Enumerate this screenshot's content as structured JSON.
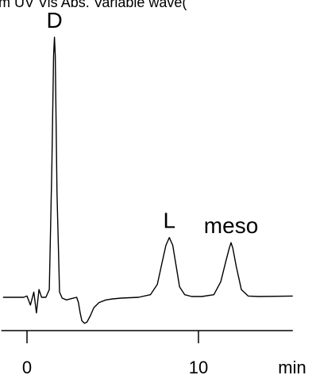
{
  "header_fragment": "m    UV Vis Abs. Variable wave(",
  "chart_data": {
    "type": "line",
    "title": "",
    "xlabel": "min",
    "ylabel": "",
    "xlim": [
      -1.5,
      15.5
    ],
    "ylim": [
      -0.12,
      1.0
    ],
    "x_ticks": [
      0,
      10
    ],
    "x_tick_labels": [
      "0",
      "10"
    ],
    "grid": false,
    "peaks": [
      {
        "label": "D",
        "time": 1.6,
        "height": 1.0
      },
      {
        "label": "L",
        "time": 8.3,
        "height": 0.23
      },
      {
        "label": "meso",
        "time": 11.9,
        "height": 0.21
      }
    ],
    "series": [
      {
        "x": [
          -1.4,
          -0.2,
          0.0,
          0.2,
          0.4,
          0.55,
          0.7,
          0.85,
          1.0,
          1.1,
          1.3,
          1.45,
          1.55,
          1.6,
          1.65,
          1.75,
          1.9,
          2.05,
          2.3,
          2.6,
          2.9,
          3.0,
          3.1,
          3.2,
          3.35,
          3.5,
          3.7,
          3.9,
          4.2,
          4.6,
          5.0,
          5.5,
          6.5,
          7.2,
          7.6,
          7.9,
          8.1,
          8.3,
          8.5,
          8.7,
          8.9,
          9.2,
          9.6,
          10.2,
          10.9,
          11.3,
          11.6,
          11.8,
          11.9,
          12.0,
          12.2,
          12.5,
          12.9,
          13.5,
          15.5
        ],
        "y": [
          0.0,
          0.0,
          0.005,
          -0.03,
          0.02,
          -0.06,
          0.03,
          0.0,
          0.0,
          0.0,
          0.03,
          0.5,
          0.93,
          1.0,
          0.93,
          0.4,
          0.02,
          -0.003,
          -0.01,
          -0.005,
          0.0,
          -0.02,
          -0.06,
          -0.09,
          -0.1,
          -0.095,
          -0.07,
          -0.04,
          -0.02,
          -0.01,
          -0.006,
          -0.003,
          0.0,
          0.01,
          0.05,
          0.14,
          0.2,
          0.23,
          0.2,
          0.12,
          0.04,
          0.01,
          0.003,
          0.003,
          0.01,
          0.06,
          0.14,
          0.19,
          0.21,
          0.19,
          0.12,
          0.03,
          0.005,
          0.003,
          0.005
        ]
      }
    ]
  }
}
